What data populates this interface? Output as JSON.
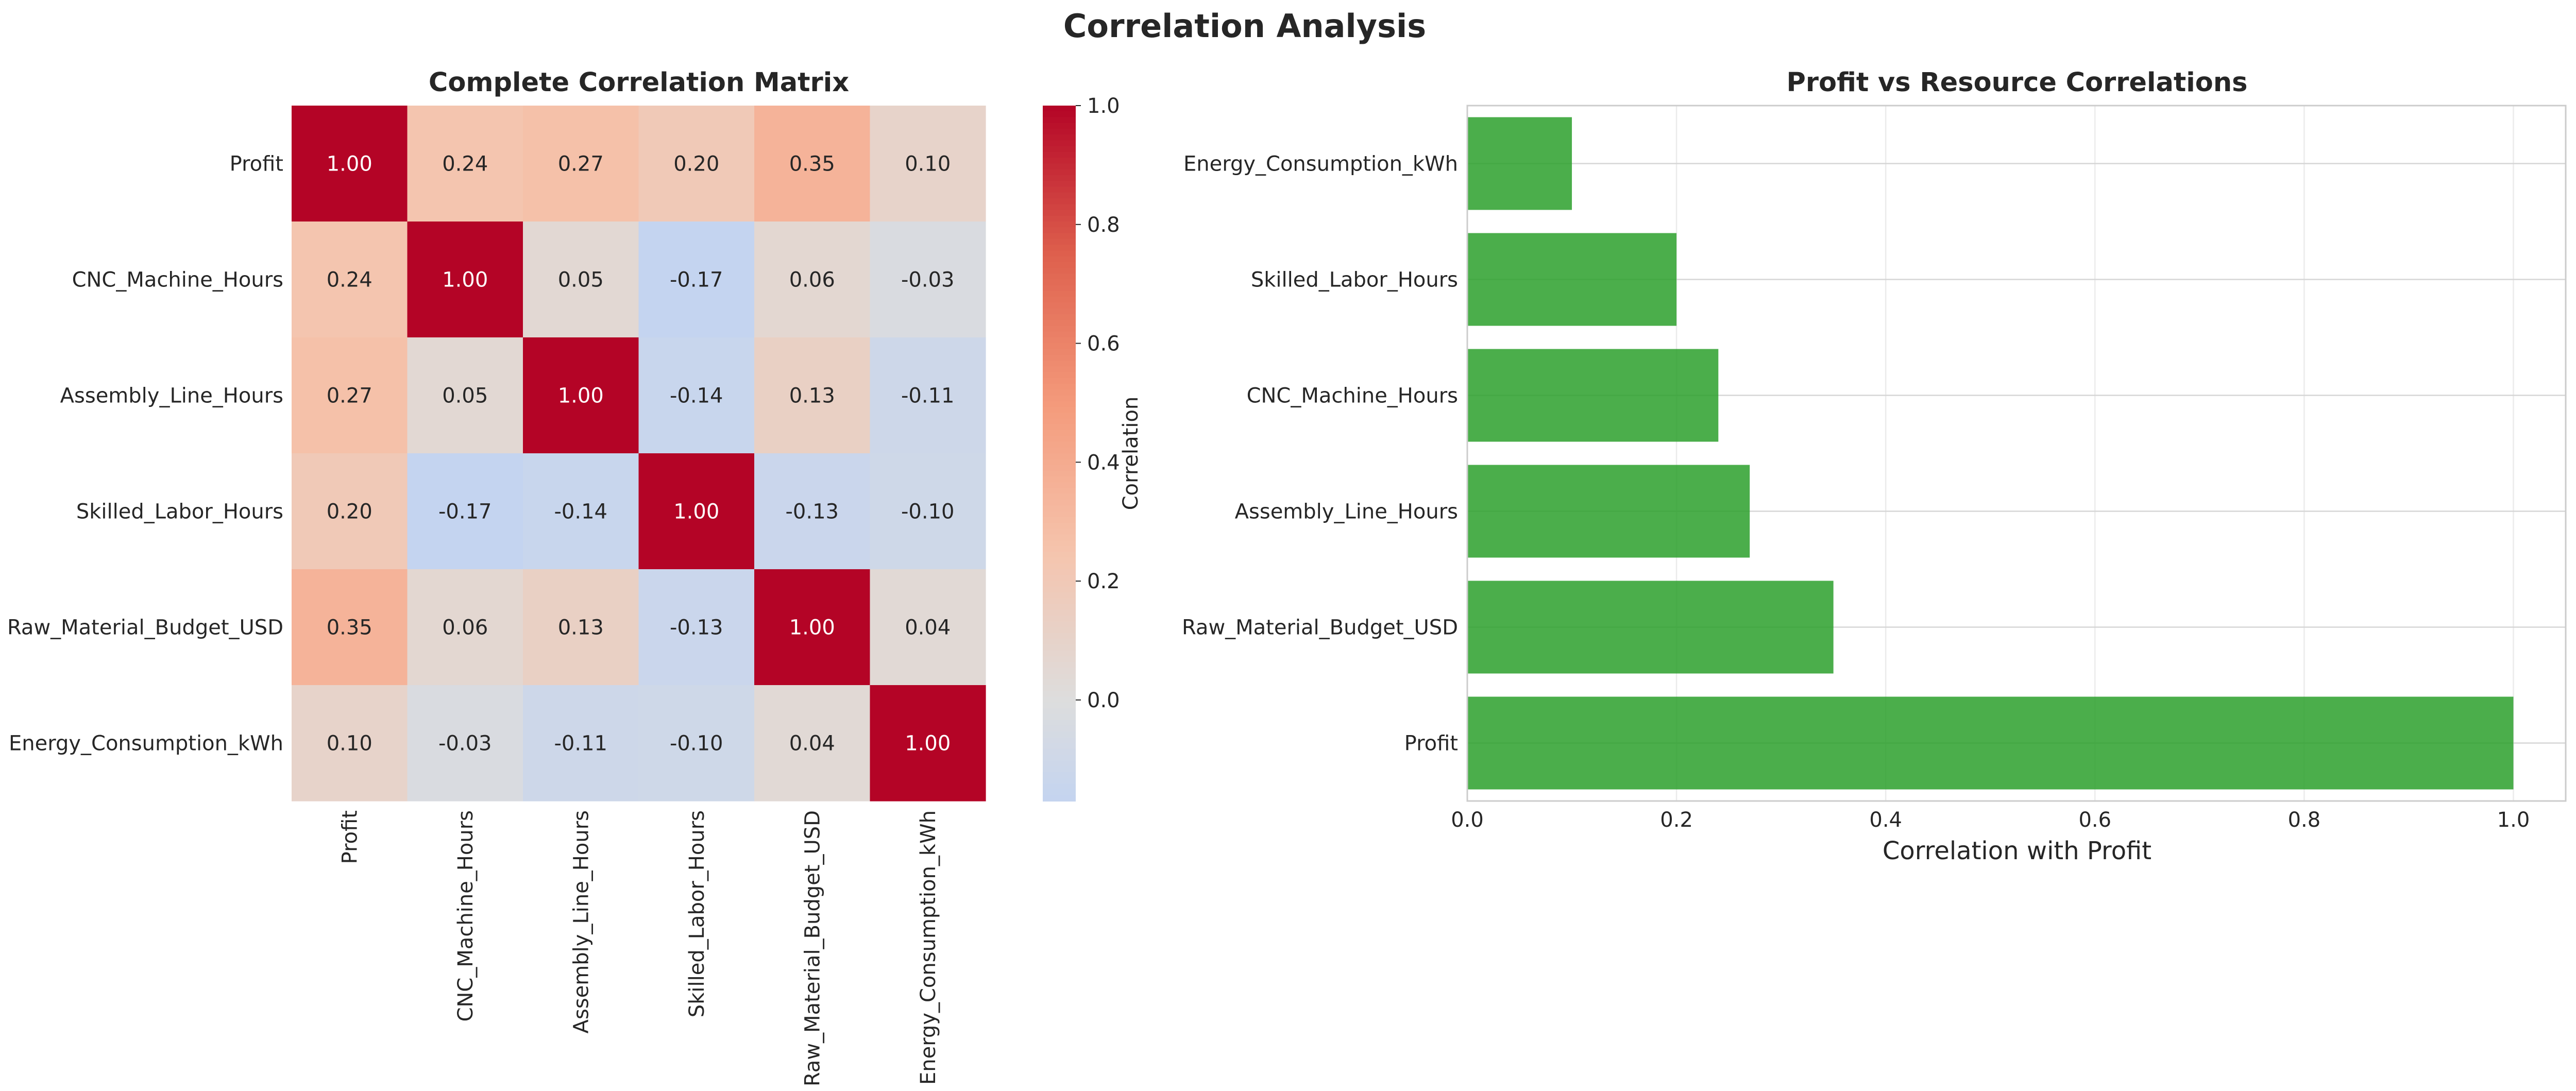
{
  "figure": {
    "title": "Correlation Analysis"
  },
  "chart_data": [
    {
      "type": "heatmap",
      "title": "Complete Correlation Matrix",
      "rows": [
        "Profit",
        "CNC_Machine_Hours",
        "Assembly_Line_Hours",
        "Skilled_Labor_Hours",
        "Raw_Material_Budget_USD",
        "Energy_Consumption_kWh"
      ],
      "columns": [
        "Profit",
        "CNC_Machine_Hours",
        "Assembly_Line_Hours",
        "Skilled_Labor_Hours",
        "Raw_Material_Budget_USD",
        "Energy_Consumption_kWh"
      ],
      "values": [
        [
          1.0,
          0.24,
          0.27,
          0.2,
          0.35,
          0.1
        ],
        [
          0.24,
          1.0,
          0.05,
          -0.17,
          0.06,
          -0.03
        ],
        [
          0.27,
          0.05,
          1.0,
          -0.14,
          0.13,
          -0.11
        ],
        [
          0.2,
          -0.17,
          -0.14,
          1.0,
          -0.13,
          -0.1
        ],
        [
          0.35,
          0.06,
          0.13,
          -0.13,
          1.0,
          0.04
        ],
        [
          0.1,
          -0.03,
          -0.11,
          -0.1,
          0.04,
          1.0
        ]
      ],
      "value_format": "0.00",
      "colormap": "coolwarm",
      "center": 0.0,
      "colorbar": {
        "label": "Correlation",
        "range": [
          -0.17,
          1.0
        ],
        "ticks": [
          0.0,
          0.2,
          0.4,
          0.6,
          0.8,
          1.0
        ],
        "tick_labels": [
          "0.0",
          "0.2",
          "0.4",
          "0.6",
          "0.8",
          "1.0"
        ]
      }
    },
    {
      "type": "bar",
      "orientation": "horizontal",
      "title": "Profit vs Resource Correlations",
      "categories": [
        "Profit",
        "Raw_Material_Budget_USD",
        "Assembly_Line_Hours",
        "CNC_Machine_Hours",
        "Skilled_Labor_Hours",
        "Energy_Consumption_kWh"
      ],
      "values": [
        1.0,
        0.35,
        0.27,
        0.24,
        0.2,
        0.1
      ],
      "xlabel": "Correlation with Profit",
      "ylabel": "",
      "xlim": [
        0,
        1.05
      ],
      "x_ticks": [
        0.0,
        0.2,
        0.4,
        0.6,
        0.8,
        1.0
      ],
      "x_tick_labels": [
        "0.0",
        "0.2",
        "0.4",
        "0.6",
        "0.8",
        "1.0"
      ],
      "grid": true,
      "bar_color": "#2ca02c",
      "bar_alpha": 0.85
    }
  ]
}
